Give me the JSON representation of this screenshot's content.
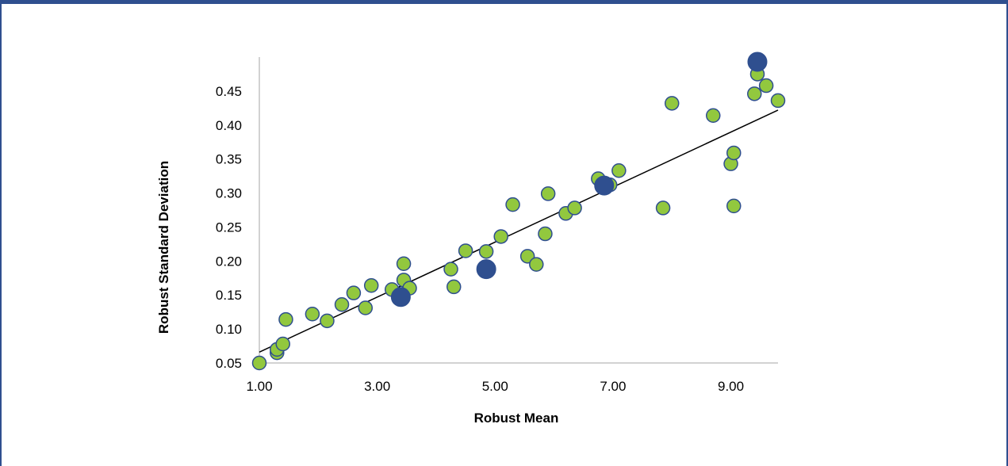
{
  "chart_data": {
    "type": "scatter",
    "xlabel": "Robust Mean",
    "ylabel": "Robust Standard Deviation",
    "xlim": [
      1.0,
      9.8
    ],
    "ylim": [
      0.05,
      0.5
    ],
    "x_ticks": [
      1.0,
      3.0,
      5.0,
      7.0,
      9.0
    ],
    "x_tick_labels": [
      "1.00",
      "3.00",
      "5.00",
      "7.00",
      "9.00"
    ],
    "y_ticks": [
      0.05,
      0.1,
      0.15,
      0.2,
      0.25,
      0.3,
      0.35,
      0.4,
      0.45
    ],
    "y_tick_labels": [
      "0.05",
      "0.10",
      "0.15",
      "0.20",
      "0.25",
      "0.30",
      "0.35",
      "0.40",
      "0.45"
    ],
    "grid": false,
    "legend": "none",
    "colors": {
      "small_points": "#92C83E",
      "large_points": "#2F4F8F",
      "outline": "#2F4F8F",
      "trendline": "#000000"
    },
    "series": [
      {
        "points": [
          [
            1.0,
            0.05
          ],
          [
            1.3,
            0.065
          ],
          [
            1.3,
            0.07
          ],
          [
            1.4,
            0.078
          ],
          [
            1.45,
            0.114
          ],
          [
            1.9,
            0.122
          ],
          [
            2.15,
            0.112
          ],
          [
            2.4,
            0.136
          ],
          [
            2.6,
            0.153
          ],
          [
            2.8,
            0.131
          ],
          [
            2.9,
            0.164
          ],
          [
            3.25,
            0.158
          ],
          [
            3.45,
            0.172
          ],
          [
            3.45,
            0.196
          ],
          [
            3.55,
            0.16
          ],
          [
            4.25,
            0.188
          ],
          [
            4.3,
            0.162
          ],
          [
            4.5,
            0.215
          ],
          [
            4.85,
            0.214
          ],
          [
            5.1,
            0.236
          ],
          [
            5.3,
            0.283
          ],
          [
            5.55,
            0.207
          ],
          [
            5.7,
            0.195
          ],
          [
            5.85,
            0.24
          ],
          [
            5.9,
            0.299
          ],
          [
            6.2,
            0.27
          ],
          [
            6.35,
            0.278
          ],
          [
            6.75,
            0.321
          ],
          [
            6.95,
            0.312
          ],
          [
            7.1,
            0.333
          ],
          [
            7.85,
            0.278
          ],
          [
            8.0,
            0.432
          ],
          [
            8.7,
            0.414
          ],
          [
            9.0,
            0.343
          ],
          [
            9.05,
            0.359
          ],
          [
            9.05,
            0.281
          ],
          [
            9.4,
            0.446
          ],
          [
            9.45,
            0.475
          ],
          [
            9.6,
            0.458
          ],
          [
            9.8,
            0.436
          ]
        ]
      },
      {
        "points": [
          [
            3.4,
            0.147
          ],
          [
            4.85,
            0.188
          ],
          [
            6.85,
            0.311
          ],
          [
            9.45,
            0.493
          ]
        ]
      }
    ],
    "trendline": {
      "type": "linear",
      "x": [
        1.0,
        9.8
      ],
      "y": [
        0.066,
        0.422
      ]
    }
  }
}
